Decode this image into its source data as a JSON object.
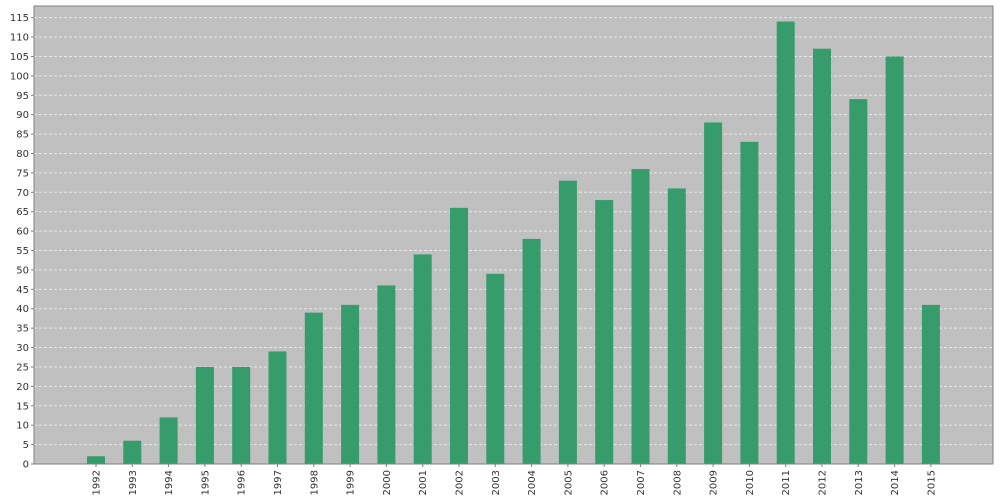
{
  "chart_data": {
    "type": "bar",
    "title": "",
    "xlabel": "",
    "ylabel": "",
    "categories": [
      "1992",
      "1993",
      "1994",
      "1995",
      "1996",
      "1997",
      "1998",
      "1999",
      "2000",
      "2001",
      "2002",
      "2003",
      "2004",
      "2005",
      "2006",
      "2007",
      "2008",
      "2009",
      "2010",
      "2011",
      "2012",
      "2013",
      "2014",
      "2015"
    ],
    "values": [
      2,
      6,
      12,
      25,
      25,
      29,
      39,
      41,
      46,
      54,
      66,
      49,
      58,
      73,
      68,
      76,
      71,
      88,
      83,
      114,
      107,
      94,
      105,
      41
    ],
    "ylim": [
      0,
      118
    ],
    "yticks": [
      0,
      5,
      10,
      15,
      20,
      25,
      30,
      35,
      40,
      45,
      50,
      55,
      60,
      65,
      70,
      75,
      80,
      85,
      90,
      95,
      100,
      105,
      110,
      115
    ],
    "grid": true,
    "legend": "none",
    "colors": {
      "bar": "#369C6C",
      "plot_background": "#C0C0C0",
      "gridline": "#E8E8E8",
      "axis": "#808080",
      "text": "#333333"
    }
  }
}
